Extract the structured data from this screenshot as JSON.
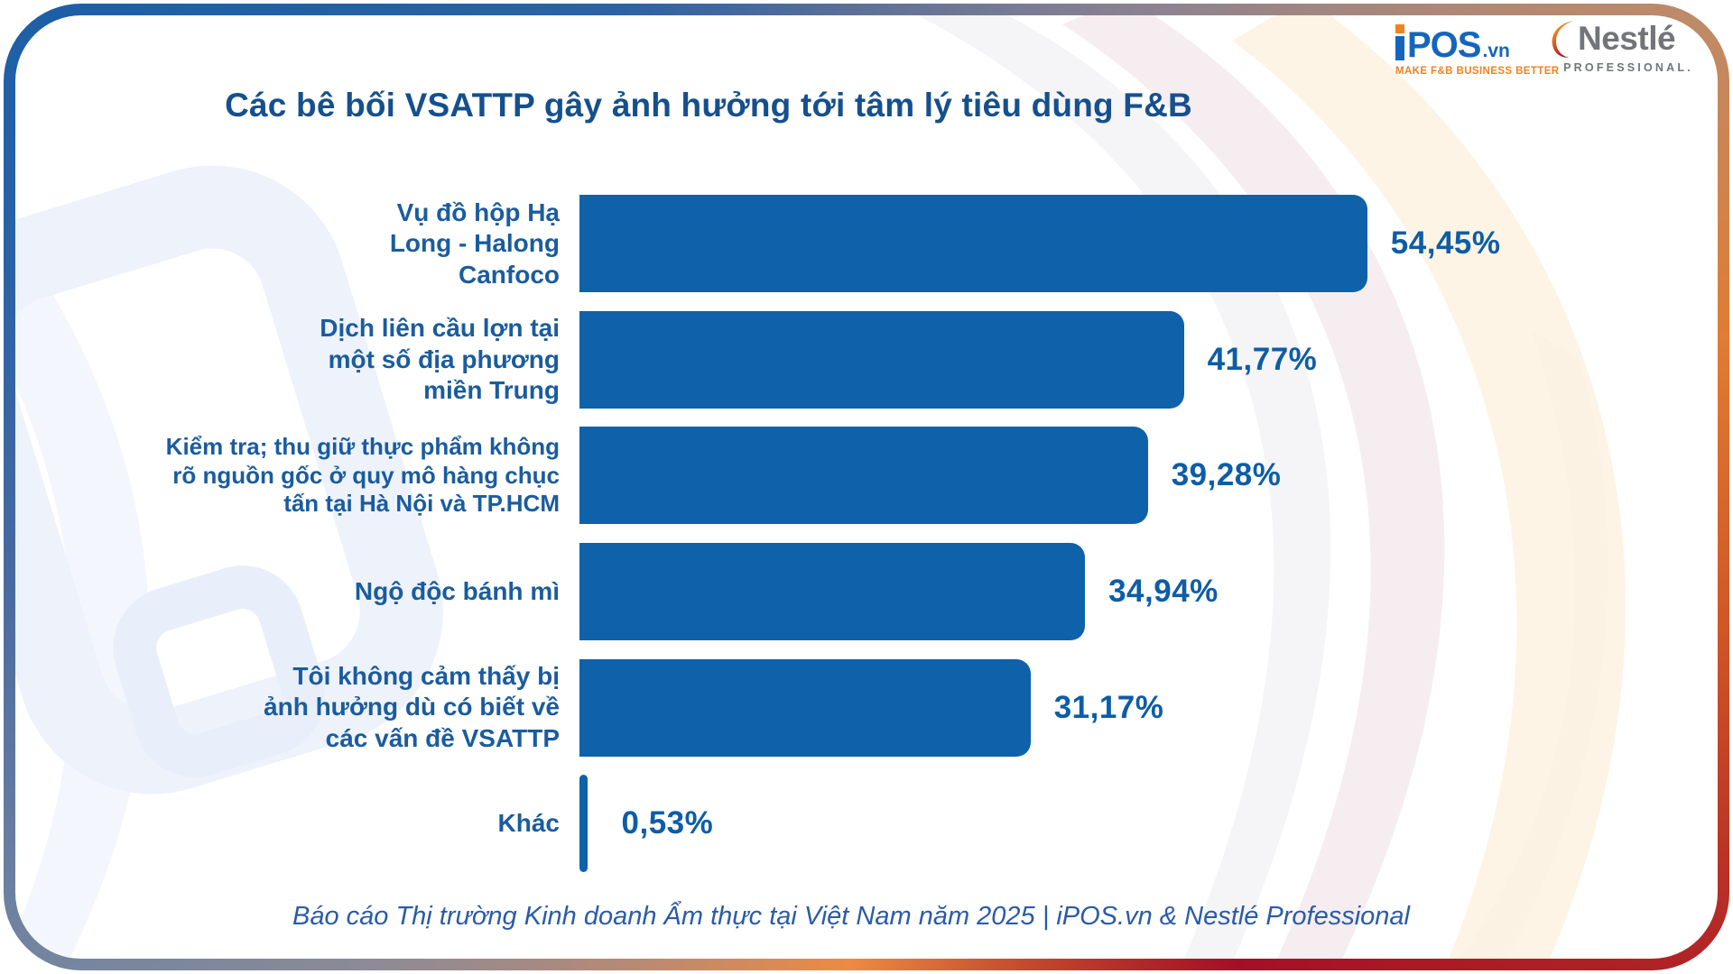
{
  "header": {
    "title": "Các bê bối VSATTP gây ảnh hưởng tới tâm lý tiêu dùng F&B"
  },
  "chart_data": {
    "type": "bar",
    "orientation": "horizontal",
    "title": "Các bê bối VSATTP gây ảnh hưởng tới tâm lý tiêu dùng F&B",
    "unit": "%",
    "xlim": [
      0,
      60
    ],
    "grid": false,
    "legend": false,
    "categories": [
      "Vụ đồ hộp Hạ Long - Halong Canfoco",
      "Dịch liên cầu lợn tại một số địa phương miền Trung",
      "Kiểm tra; thu giữ thực phẩm không rõ nguồn gốc ở quy mô hàng chục tấn tại Hà Nội và TP.HCM",
      "Ngộ độc bánh mì",
      "Tôi không cảm thấy bị ảnh hưởng dù có biết về các vấn đề VSATTP",
      "Khác"
    ],
    "values": [
      54.45,
      41.77,
      39.28,
      34.94,
      31.17,
      0.53
    ],
    "items": [
      {
        "label_lines": [
          "Vụ đồ hộp Hạ",
          "Long - Halong",
          "Canfoco"
        ],
        "value": 54.45,
        "value_label": "54,45%"
      },
      {
        "label_lines": [
          "Dịch liên cầu lợn tại",
          "một số địa phương",
          "miền Trung"
        ],
        "value": 41.77,
        "value_label": "41,77%"
      },
      {
        "label_lines": [
          "Kiểm tra; thu giữ thực phẩm không",
          "rõ nguồn gốc ở quy mô hàng chục",
          "tấn tại Hà Nội và TP.HCM"
        ],
        "value": 39.28,
        "value_label": "39,28%"
      },
      {
        "label_lines": [
          "Ngộ độc bánh mì"
        ],
        "value": 34.94,
        "value_label": "34,94%"
      },
      {
        "label_lines": [
          "Tôi không cảm thấy bị",
          "ảnh hưởng dù có biết về",
          "các vấn đề VSATTP"
        ],
        "value": 31.17,
        "value_label": "31,17%"
      },
      {
        "label_lines": [
          "Khác"
        ],
        "value": 0.53,
        "value_label": "0,53%"
      }
    ]
  },
  "footer": {
    "source": "Báo cáo Thị trường Kinh doanh Ẩm thực tại Việt Nam năm 2025 |  iPOS.vn & Nestlé Professional"
  },
  "logos": {
    "ipos": {
      "pos": "POS",
      "vn": ".vn",
      "tagline": "MAKE F&B BUSINESS BETTER"
    },
    "nestle": {
      "word": "Nestlé",
      "sub": "PROFESSIONAL."
    }
  },
  "colors": {
    "bar": "#0f61a9",
    "title_text": "#15508d",
    "label_text": "#1a5c9e",
    "value_text": "#0d5da7",
    "footer_text": "#2a5ba8",
    "ipos_blue": "#1565bd",
    "ipos_orange": "#f08223",
    "nestle_gray": "#717479",
    "border_blue": "#1d5fa7",
    "border_orange": "#ee8a43",
    "border_red": "#a40f27"
  }
}
